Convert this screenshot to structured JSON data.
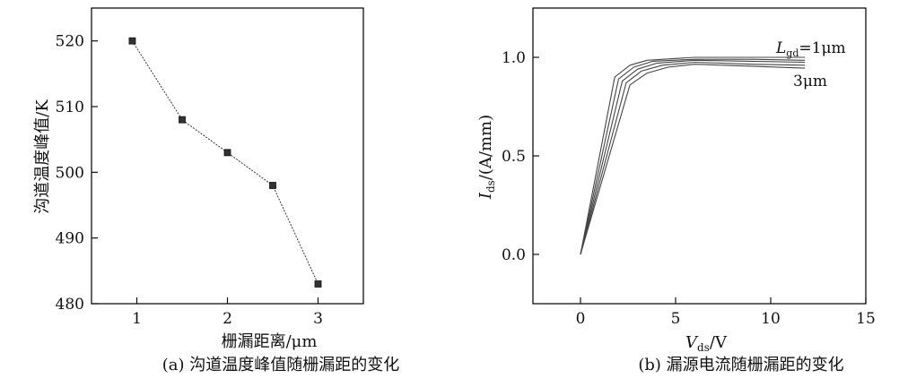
{
  "chart_data": [
    {
      "type": "line",
      "caption": "(a) 沟道温度峰值随栅漏距的变化",
      "xlabel": "栅漏距离/μm",
      "ylabel": "沟道温度峰值/K",
      "xlim": [
        0.5,
        3.5
      ],
      "ylim": [
        480,
        525
      ],
      "x_ticks": [
        1,
        2,
        3
      ],
      "y_ticks": [
        480,
        490,
        500,
        510,
        520
      ],
      "grid": false,
      "series": [
        {
          "x": [
            0.95,
            1.5,
            2.0,
            2.5,
            3.0
          ],
          "y": [
            520,
            508,
            503,
            498,
            483
          ]
        }
      ]
    },
    {
      "type": "line",
      "caption": "(b) 漏源电流随栅漏距的变化",
      "xlabel": "V_ds/V",
      "ylabel": "I_ds/(A/mm)",
      "xlim": [
        -2.5,
        15
      ],
      "ylim": [
        -0.25,
        1.25
      ],
      "x_ticks": [
        0,
        5,
        10,
        15
      ],
      "y_ticks": [
        0.0,
        0.5,
        1.0
      ],
      "grid": false,
      "annotations": [
        "L_gd=1μm",
        "3μm"
      ],
      "series": [
        {
          "x": [
            0,
            1.8,
            2.6,
            3.5,
            6,
            9,
            11.8
          ],
          "y": [
            0,
            0.9,
            0.96,
            0.985,
            1.0,
            1.0,
            1.0
          ]
        },
        {
          "x": [
            0,
            2.0,
            2.8,
            3.8,
            6,
            9,
            11.8
          ],
          "y": [
            0,
            0.89,
            0.95,
            0.98,
            0.99,
            0.99,
            0.985
          ]
        },
        {
          "x": [
            0,
            2.2,
            3.0,
            4.0,
            6,
            9,
            11.8
          ],
          "y": [
            0,
            0.88,
            0.94,
            0.97,
            0.985,
            0.98,
            0.975
          ]
        },
        {
          "x": [
            0,
            2.4,
            3.2,
            4.3,
            6,
            9,
            11.8
          ],
          "y": [
            0,
            0.87,
            0.93,
            0.96,
            0.975,
            0.965,
            0.96
          ]
        },
        {
          "x": [
            0,
            2.6,
            3.5,
            4.6,
            6,
            9,
            11.8
          ],
          "y": [
            0,
            0.86,
            0.92,
            0.95,
            0.965,
            0.955,
            0.945
          ]
        }
      ]
    }
  ]
}
